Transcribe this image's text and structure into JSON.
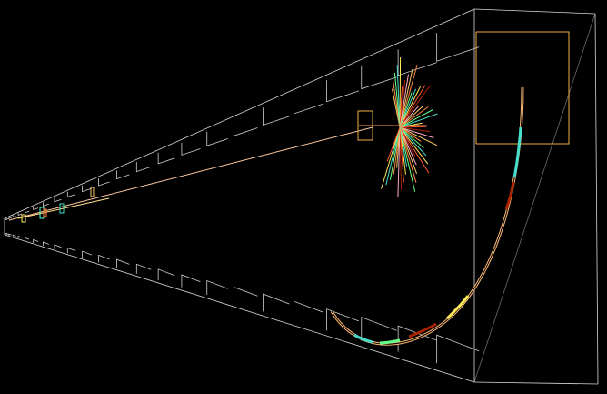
{
  "scene": {
    "background": "#000000",
    "frame_color": "#d8d8d8",
    "highlight_color": "#f0b040",
    "track_colors": [
      "#ffcc66",
      "#ff8844",
      "#66ff88",
      "#44ddcc",
      "#ffee55",
      "#ff5533",
      "#aa2200",
      "#ffaacc"
    ]
  }
}
